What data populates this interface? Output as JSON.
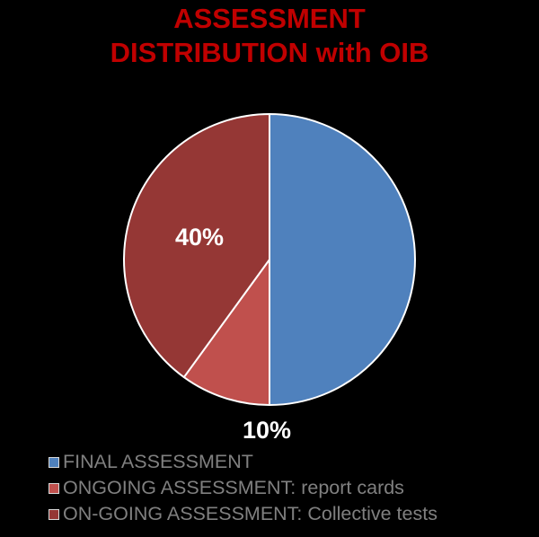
{
  "chart_data": {
    "type": "pie",
    "title_lines": [
      "ASSESSMENT",
      "DISTRIBUTION with OIB"
    ],
    "slices": [
      {
        "label": "FINAL ASSESSMENT",
        "value": 50,
        "color": "#4f81bd",
        "data_label": ""
      },
      {
        "label": "ONGOING ASSESSMENT: report cards",
        "value": 10,
        "color": "#c0504d",
        "data_label": "10%"
      },
      {
        "label": "ON-GOING ASSESSMENT: Collective tests",
        "value": 40,
        "color": "#953735",
        "data_label": "40%"
      }
    ],
    "legend_position": "bottom",
    "start_angle": "top",
    "direction": "clockwise"
  },
  "colors": {
    "background": "#000000",
    "title": "#c00000",
    "label_text": "#ffffff",
    "legend_text": "#808080",
    "slice_border": "#ffffff"
  }
}
